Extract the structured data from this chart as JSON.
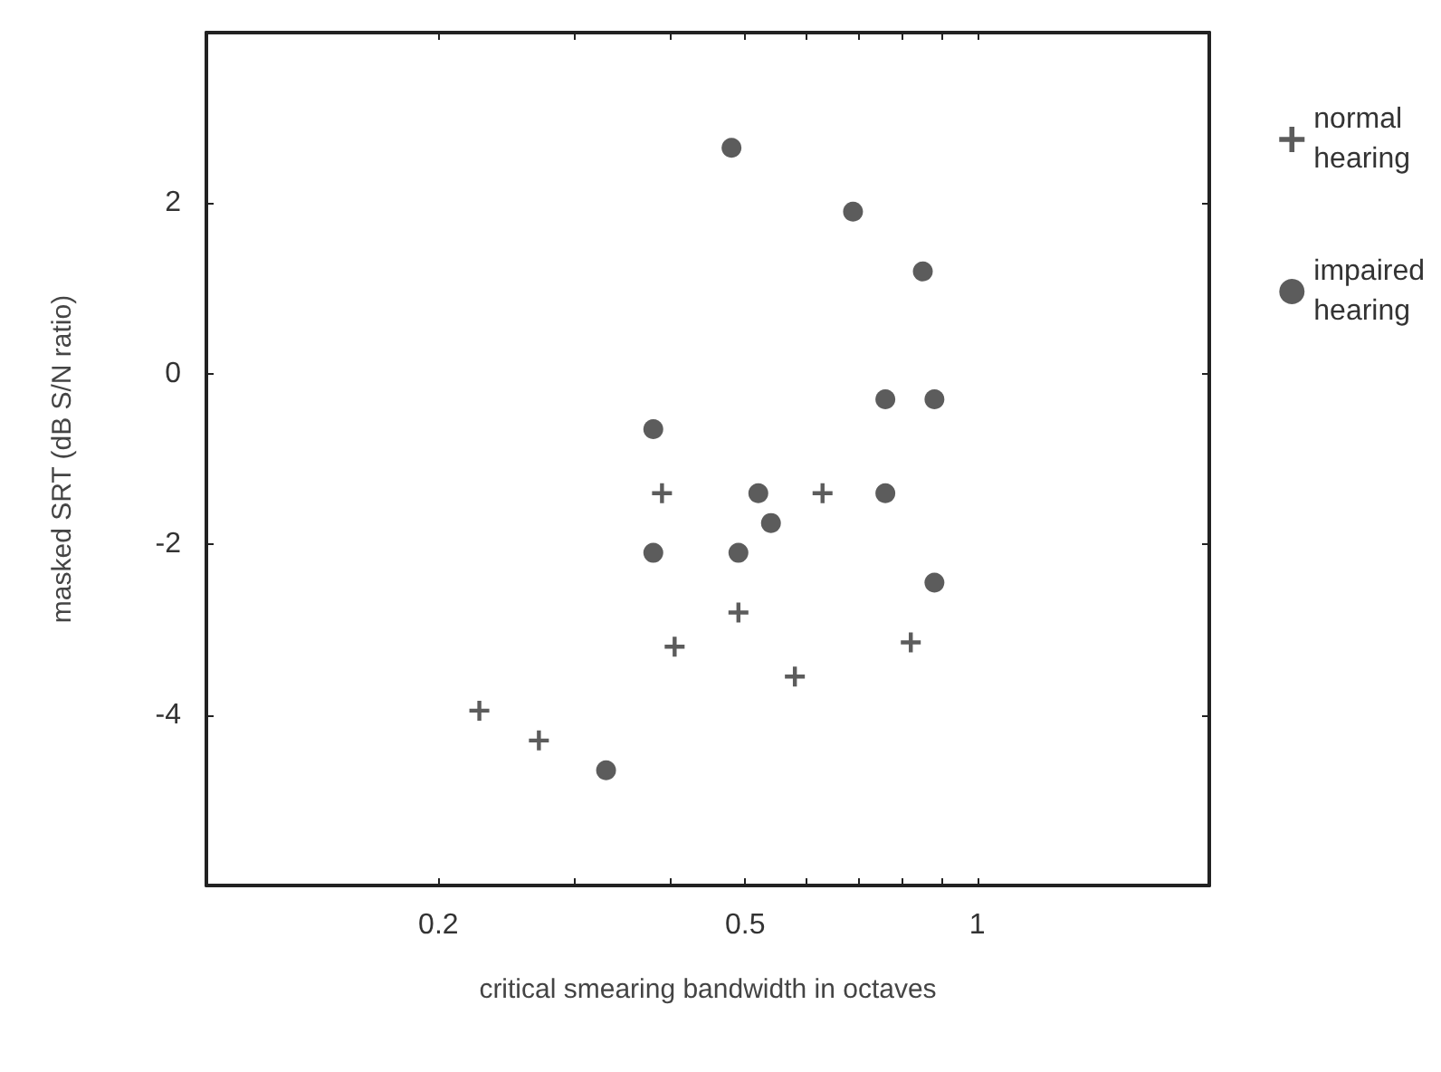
{
  "chart_data": {
    "type": "scatter",
    "xlabel": "critical smearing bandwidth in octaves",
    "ylabel": "masked SRT (dB S/N ratio)",
    "log": "x",
    "xlim": [
      0.1,
      2
    ],
    "ylim": [
      -6,
      4
    ],
    "xticks": [
      0.2,
      {
        "value": 0.3,
        "label": null
      },
      {
        "value": 0.4,
        "label": null
      },
      0.5,
      {
        "value": 0.6,
        "label": null
      },
      {
        "value": 0.7,
        "label": null
      },
      {
        "value": 0.8,
        "label": null
      },
      {
        "value": 0.9,
        "label": null
      },
      1
    ],
    "yticks": [
      -4,
      -2,
      0,
      2
    ],
    "grid": false,
    "legend": "right",
    "series": [
      {
        "name": "normal hearing",
        "color": "#333333",
        "marker": "cross",
        "x": [
          0.226,
          0.27,
          0.39,
          0.405,
          0.49,
          0.58,
          0.63,
          0.82
        ],
        "values": [
          -3.95,
          -4.3,
          -1.4,
          -3.2,
          -2.8,
          -3.55,
          -1.4,
          -3.15
        ]
      },
      {
        "name": "impaired hearing",
        "color": "#333333",
        "marker": "circle",
        "x": [
          0.33,
          0.38,
          0.38,
          0.48,
          0.49,
          0.52,
          0.54,
          0.76,
          0.76,
          0.88,
          0.69,
          0.85,
          0.88
        ],
        "values": [
          -4.65,
          -2.1,
          -0.65,
          2.65,
          -2.1,
          -1.4,
          -1.75,
          -1.4,
          -0.3,
          -0.3,
          1.9,
          1.2,
          -2.45
        ]
      }
    ]
  }
}
